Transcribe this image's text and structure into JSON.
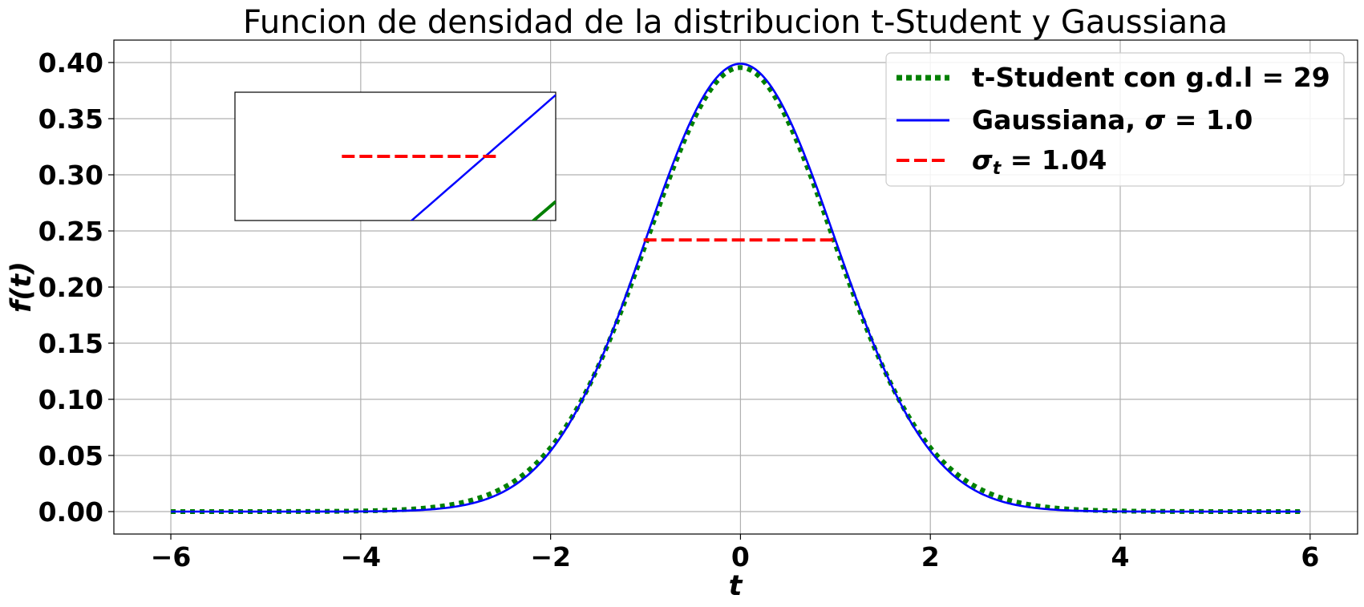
{
  "chart_data": {
    "type": "line",
    "title": "Funcion de densidad de la distribucion t-Student y Gaussiana",
    "xlabel": "t",
    "ylabel": "f(t)",
    "xlim": [
      -6.6,
      6.5
    ],
    "ylim": [
      -0.02,
      0.42
    ],
    "xticks": [
      -6,
      -4,
      -2,
      0,
      2,
      4,
      6
    ],
    "xtick_labels": [
      "−6",
      "−4",
      "−2",
      "0",
      "2",
      "4",
      "6"
    ],
    "yticks": [
      0.0,
      0.05,
      0.1,
      0.15,
      0.2,
      0.25,
      0.3,
      0.35,
      0.4
    ],
    "ytick_labels": [
      "0.00",
      "0.05",
      "0.10",
      "0.15",
      "0.20",
      "0.25",
      "0.30",
      "0.35",
      "0.40"
    ],
    "grid": true,
    "legend_position": "top-right",
    "x_range": [
      -6.0,
      5.9
    ],
    "series": [
      {
        "name": "t-Student con g.d.l = 29",
        "kind": "t-student",
        "dof": 29,
        "color": "#008000",
        "style": "dotted"
      },
      {
        "name": "Gaussiana, σ = 1.0",
        "kind": "gaussian",
        "sigma": 1.0,
        "color": "#0000ff",
        "style": "solid"
      },
      {
        "name": "σt = 1.04",
        "kind": "hline",
        "y": 0.242,
        "x_from": -1.02,
        "x_to": 1.02,
        "color": "#ff0000",
        "style": "dashed"
      }
    ],
    "legend": {
      "items": [
        {
          "text": "t-Student con g.d.l = 29",
          "color": "#008000",
          "style": "dotted"
        },
        {
          "text_prefix": "Gaussiana, ",
          "symbol": "σ",
          "text_suffix": " = 1.0",
          "color": "#0000ff",
          "style": "solid"
        },
        {
          "symbol": "σ",
          "subscript": "t",
          "text_suffix": " = 1.04",
          "color": "#ff0000",
          "style": "dashed"
        }
      ]
    },
    "inset": {
      "xlim": [
        -1.035,
        -0.99
      ],
      "ylim": [
        0.2395,
        0.2445
      ]
    }
  }
}
